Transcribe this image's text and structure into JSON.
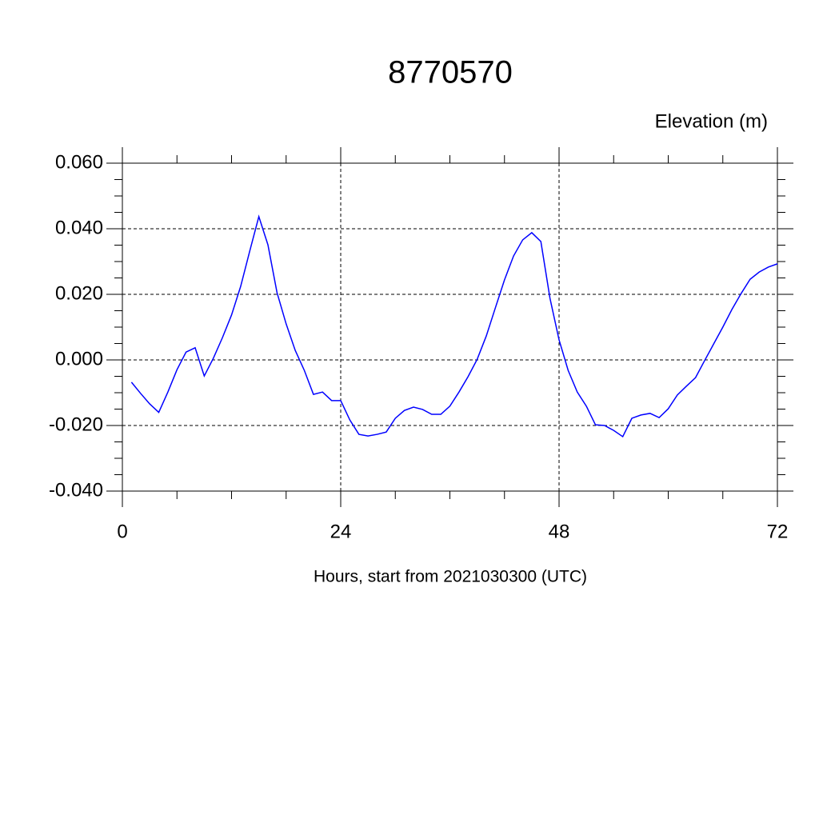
{
  "chart_data": {
    "type": "line",
    "title": "8770570",
    "y_axis_label": "Elevation (m)",
    "x_axis_label": "Hours, start from 2021030300 (UTC)",
    "series": [
      {
        "color": "#0000ff",
        "x": [
          1,
          2,
          3,
          4,
          5,
          6,
          7,
          8,
          9,
          10,
          11,
          12,
          13,
          14,
          15,
          16,
          17,
          18,
          19,
          20,
          21,
          22,
          23,
          24,
          25,
          26,
          27,
          28,
          29,
          30,
          31,
          32,
          33,
          34,
          35,
          36,
          37,
          38,
          39,
          40,
          41,
          42,
          43,
          44,
          45,
          46,
          47,
          48,
          49,
          50,
          51,
          52,
          53,
          54,
          55,
          56,
          57,
          58,
          59,
          60,
          61,
          62,
          63,
          64,
          65,
          66,
          67,
          68,
          69,
          70,
          71,
          72
        ],
        "values": [
          -0.0068,
          -0.0102,
          -0.0134,
          -0.016,
          -0.0098,
          -0.003,
          0.0024,
          0.0037,
          -0.0049,
          0.0005,
          0.0068,
          0.0137,
          0.0224,
          0.0332,
          0.0437,
          0.0351,
          0.0205,
          0.011,
          0.0029,
          -0.0032,
          -0.0105,
          -0.0098,
          -0.0124,
          -0.0124,
          -0.0183,
          -0.0227,
          -0.0232,
          -0.0227,
          -0.022,
          -0.0178,
          -0.0154,
          -0.0144,
          -0.0151,
          -0.0166,
          -0.0166,
          -0.0141,
          -0.0098,
          -0.0051,
          0.0002,
          0.0073,
          0.0159,
          0.0244,
          0.0317,
          0.0366,
          0.0388,
          0.0361,
          0.0188,
          0.0061,
          -0.0032,
          -0.0098,
          -0.0141,
          -0.0198,
          -0.02,
          -0.0215,
          -0.0234,
          -0.0178,
          -0.0168,
          -0.0163,
          -0.0176,
          -0.0149,
          -0.0107,
          -0.008,
          -0.0054,
          -0.0002,
          0.0049,
          0.01,
          0.0154,
          0.0202,
          0.0246,
          0.0268,
          0.0283,
          0.0293
        ]
      }
    ],
    "xlim": [
      0,
      72
    ],
    "xticks": [
      0,
      24,
      48,
      72
    ],
    "ylim": [
      -0.04,
      0.06
    ],
    "yticks": [
      {
        "value": -0.04,
        "label": "-0.040"
      },
      {
        "value": -0.02,
        "label": "-0.020"
      },
      {
        "value": 0,
        "label": "0.000"
      },
      {
        "value": 0.02,
        "label": "0.020"
      },
      {
        "value": 0.04,
        "label": "0.040"
      },
      {
        "value": 0.06,
        "label": "0.060"
      }
    ],
    "grid": true
  }
}
